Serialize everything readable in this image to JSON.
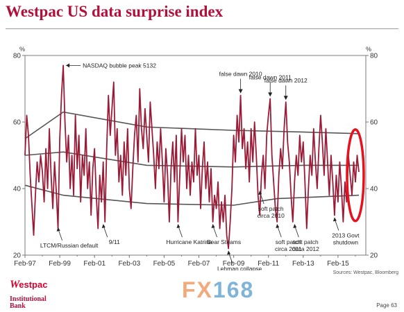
{
  "page": {
    "title": "Westpac US data surprise index",
    "source": "Sources: Westpac, Bloomberg",
    "page_number": "Page 63",
    "logo": {
      "mark": "W",
      "name": "estpac",
      "sub_line1": "Institutional",
      "sub_line2": "Bank"
    },
    "watermark": {
      "part_a": "FX",
      "part_b": "168"
    }
  },
  "colors": {
    "series": "#9b1b36",
    "bands": "#555555",
    "highlight": "#e8101c",
    "axis": "#7a7a7a",
    "text": "#333333"
  },
  "chart_data": {
    "type": "line",
    "title": "Westpac US data surprise index",
    "y_unit_label": "%",
    "ylim": [
      20,
      80
    ],
    "yticks": [
      20,
      40,
      60,
      80
    ],
    "xlim": [
      1997.0,
      2016.6
    ],
    "xticks": [
      {
        "x": 1997.0,
        "label": "Feb-97"
      },
      {
        "x": 1999.0,
        "label": "Feb-99"
      },
      {
        "x": 2001.0,
        "label": "Feb-01"
      },
      {
        "x": 2003.0,
        "label": "Feb-03"
      },
      {
        "x": 2005.0,
        "label": "Feb-05"
      },
      {
        "x": 2007.0,
        "label": "Feb-07"
      },
      {
        "x": 2009.0,
        "label": "Feb-09"
      },
      {
        "x": 2011.0,
        "label": "Feb-11"
      },
      {
        "x": 2013.0,
        "label": "Feb-13"
      },
      {
        "x": 2015.0,
        "label": "Feb-15"
      }
    ],
    "grid": false,
    "series": [
      {
        "role": "index",
        "points": [
          [
            1997.0,
            50
          ],
          [
            1997.1,
            62
          ],
          [
            1997.2,
            56
          ],
          [
            1997.3,
            44
          ],
          [
            1997.4,
            35
          ],
          [
            1997.5,
            26
          ],
          [
            1997.6,
            38
          ],
          [
            1997.7,
            48
          ],
          [
            1997.8,
            42
          ],
          [
            1997.9,
            50
          ],
          [
            1998.0,
            45
          ],
          [
            1998.1,
            36
          ],
          [
            1998.2,
            52
          ],
          [
            1998.3,
            40
          ],
          [
            1998.4,
            58
          ],
          [
            1998.5,
            44
          ],
          [
            1998.6,
            34
          ],
          [
            1998.7,
            48
          ],
          [
            1998.8,
            39
          ],
          [
            1998.9,
            28
          ],
          [
            1999.0,
            55
          ],
          [
            1999.1,
            68
          ],
          [
            1999.2,
            77
          ],
          [
            1999.3,
            60
          ],
          [
            1999.4,
            48
          ],
          [
            1999.5,
            56
          ],
          [
            1999.6,
            40
          ],
          [
            1999.7,
            50
          ],
          [
            1999.8,
            38
          ],
          [
            1999.9,
            62
          ],
          [
            2000.0,
            46
          ],
          [
            2000.1,
            56
          ],
          [
            2000.2,
            36
          ],
          [
            2000.3,
            50
          ],
          [
            2000.4,
            44
          ],
          [
            2000.5,
            58
          ],
          [
            2000.6,
            40
          ],
          [
            2000.7,
            48
          ],
          [
            2000.8,
            32
          ],
          [
            2000.9,
            46
          ],
          [
            2001.0,
            52
          ],
          [
            2001.1,
            38
          ],
          [
            2001.2,
            28
          ],
          [
            2001.3,
            44
          ],
          [
            2001.4,
            36
          ],
          [
            2001.5,
            48
          ],
          [
            2001.6,
            30
          ],
          [
            2001.7,
            52
          ],
          [
            2001.8,
            68
          ],
          [
            2001.9,
            56
          ],
          [
            2002.0,
            64
          ],
          [
            2002.1,
            72
          ],
          [
            2002.2,
            50
          ],
          [
            2002.3,
            58
          ],
          [
            2002.4,
            42
          ],
          [
            2002.5,
            50
          ],
          [
            2002.6,
            38
          ],
          [
            2002.7,
            54
          ],
          [
            2002.8,
            44
          ],
          [
            2002.9,
            58
          ],
          [
            2003.0,
            40
          ],
          [
            2003.1,
            34
          ],
          [
            2003.2,
            46
          ],
          [
            2003.3,
            56
          ],
          [
            2003.4,
            62
          ],
          [
            2003.5,
            48
          ],
          [
            2003.6,
            70
          ],
          [
            2003.7,
            58
          ],
          [
            2003.8,
            52
          ],
          [
            2003.9,
            64
          ],
          [
            2004.0,
            56
          ],
          [
            2004.1,
            48
          ],
          [
            2004.2,
            66
          ],
          [
            2004.3,
            58
          ],
          [
            2004.4,
            50
          ],
          [
            2004.5,
            40
          ],
          [
            2004.6,
            54
          ],
          [
            2004.7,
            46
          ],
          [
            2004.8,
            58
          ],
          [
            2004.9,
            48
          ],
          [
            2005.0,
            36
          ],
          [
            2005.1,
            52
          ],
          [
            2005.2,
            44
          ],
          [
            2005.3,
            30
          ],
          [
            2005.4,
            46
          ],
          [
            2005.5,
            54
          ],
          [
            2005.6,
            42
          ],
          [
            2005.7,
            56
          ],
          [
            2005.8,
            30
          ],
          [
            2005.9,
            44
          ],
          [
            2006.0,
            58
          ],
          [
            2006.1,
            48
          ],
          [
            2006.2,
            56
          ],
          [
            2006.3,
            40
          ],
          [
            2006.4,
            50
          ],
          [
            2006.5,
            38
          ],
          [
            2006.6,
            48
          ],
          [
            2006.7,
            42
          ],
          [
            2006.8,
            58
          ],
          [
            2006.9,
            44
          ],
          [
            2007.0,
            50
          ],
          [
            2007.1,
            34
          ],
          [
            2007.2,
            46
          ],
          [
            2007.3,
            54
          ],
          [
            2007.4,
            40
          ],
          [
            2007.5,
            48
          ],
          [
            2007.6,
            36
          ],
          [
            2007.7,
            46
          ],
          [
            2007.8,
            30
          ],
          [
            2007.9,
            38
          ],
          [
            2008.0,
            34
          ],
          [
            2008.1,
            42
          ],
          [
            2008.2,
            28
          ],
          [
            2008.3,
            36
          ],
          [
            2008.4,
            30
          ],
          [
            2008.5,
            38
          ],
          [
            2008.6,
            26
          ],
          [
            2008.7,
            22
          ],
          [
            2008.8,
            30
          ],
          [
            2008.9,
            40
          ],
          [
            2009.0,
            56
          ],
          [
            2009.1,
            48
          ],
          [
            2009.2,
            62
          ],
          [
            2009.3,
            54
          ],
          [
            2009.4,
            68
          ],
          [
            2009.5,
            52
          ],
          [
            2009.6,
            58
          ],
          [
            2009.7,
            46
          ],
          [
            2009.8,
            54
          ],
          [
            2009.9,
            42
          ],
          [
            2010.0,
            58
          ],
          [
            2010.1,
            48
          ],
          [
            2010.2,
            60
          ],
          [
            2010.3,
            50
          ],
          [
            2010.4,
            38
          ],
          [
            2010.5,
            32
          ],
          [
            2010.6,
            44
          ],
          [
            2010.7,
            50
          ],
          [
            2010.8,
            40
          ],
          [
            2010.9,
            56
          ],
          [
            2011.0,
            62
          ],
          [
            2011.1,
            67
          ],
          [
            2011.2,
            50
          ],
          [
            2011.3,
            42
          ],
          [
            2011.4,
            34
          ],
          [
            2011.5,
            30
          ],
          [
            2011.6,
            44
          ],
          [
            2011.7,
            52
          ],
          [
            2011.8,
            46
          ],
          [
            2011.9,
            58
          ],
          [
            2012.0,
            66
          ],
          [
            2012.1,
            54
          ],
          [
            2012.2,
            48
          ],
          [
            2012.3,
            38
          ],
          [
            2012.4,
            30
          ],
          [
            2012.5,
            42
          ],
          [
            2012.6,
            50
          ],
          [
            2012.7,
            44
          ],
          [
            2012.8,
            56
          ],
          [
            2012.9,
            48
          ],
          [
            2013.0,
            54
          ],
          [
            2013.1,
            42
          ],
          [
            2013.2,
            28
          ],
          [
            2013.3,
            40
          ],
          [
            2013.4,
            50
          ],
          [
            2013.5,
            44
          ],
          [
            2013.6,
            58
          ],
          [
            2013.7,
            48
          ],
          [
            2013.8,
            40
          ],
          [
            2013.9,
            52
          ],
          [
            2014.0,
            62
          ],
          [
            2014.1,
            54
          ],
          [
            2014.2,
            44
          ],
          [
            2014.3,
            58
          ],
          [
            2014.4,
            48
          ],
          [
            2014.5,
            38
          ],
          [
            2014.6,
            50
          ],
          [
            2014.7,
            42
          ],
          [
            2014.8,
            32
          ],
          [
            2014.9,
            44
          ],
          [
            2015.0,
            36
          ],
          [
            2015.1,
            48
          ],
          [
            2015.2,
            40
          ],
          [
            2015.3,
            30
          ],
          [
            2015.4,
            42
          ],
          [
            2015.5,
            36
          ],
          [
            2015.6,
            50
          ],
          [
            2015.7,
            44
          ],
          [
            2015.8,
            38
          ],
          [
            2015.9,
            48
          ],
          [
            2016.0,
            42
          ],
          [
            2016.1,
            50
          ],
          [
            2016.2,
            45
          ]
        ]
      },
      {
        "role": "upper-band",
        "points": [
          [
            1997.0,
            55
          ],
          [
            1999.2,
            63
          ],
          [
            2004.0,
            58.5
          ],
          [
            2009.0,
            57.5
          ],
          [
            2013.0,
            57
          ],
          [
            2016.2,
            56.5
          ]
        ]
      },
      {
        "role": "mid-band",
        "points": [
          [
            1997.0,
            50
          ],
          [
            1999.2,
            51
          ],
          [
            2004.0,
            47
          ],
          [
            2009.0,
            46.5
          ],
          [
            2013.0,
            47
          ],
          [
            2016.2,
            47
          ]
        ]
      },
      {
        "role": "lower-band",
        "points": [
          [
            1997.0,
            41
          ],
          [
            1999.2,
            38
          ],
          [
            2004.0,
            35.5
          ],
          [
            2009.0,
            35
          ],
          [
            2011.5,
            37
          ],
          [
            2016.2,
            38
          ]
        ]
      }
    ],
    "annotations": [
      {
        "text": "NASDAQ bubble peak 5132",
        "x": 1999.2,
        "y": 77,
        "arrow": "left"
      },
      {
        "text": "false dawn 2010",
        "x": 2009.4,
        "y": 68,
        "arrow": "down"
      },
      {
        "text": "false dawn 2011",
        "x": 2011.1,
        "y": 67,
        "arrow": "down"
      },
      {
        "text": "false dawn 2012",
        "x": 2012.0,
        "y": 66,
        "arrow": "down"
      },
      {
        "text": "LTCM/Russian default",
        "x": 1998.9,
        "y": 29,
        "arrow": "up"
      },
      {
        "text": "9/11",
        "x": 2001.5,
        "y": 30,
        "arrow": "up"
      },
      {
        "text": "Hurricane Katrina",
        "x": 2005.8,
        "y": 30,
        "arrow": "up"
      },
      {
        "text": "Bear Steams",
        "x": 2007.8,
        "y": 30,
        "arrow": "up"
      },
      {
        "text": "Lehman collapse",
        "x": 2008.7,
        "y": 22,
        "arrow": "up"
      },
      {
        "text": "soft patch circa 2010",
        "x": 2010.5,
        "y": 40,
        "arrow": "up"
      },
      {
        "text": "soft patch circa 2011",
        "x": 2011.5,
        "y": 30,
        "arrow": "up"
      },
      {
        "text": "soft patch circa 2012",
        "x": 2012.5,
        "y": 30,
        "arrow": "up"
      },
      {
        "text": "2013 Govt shutdown",
        "x": 2014.8,
        "y": 32,
        "arrow": "up"
      }
    ],
    "highlight": {
      "shape": "ellipse",
      "center_x": 2016.0,
      "center_y": 44
    }
  }
}
